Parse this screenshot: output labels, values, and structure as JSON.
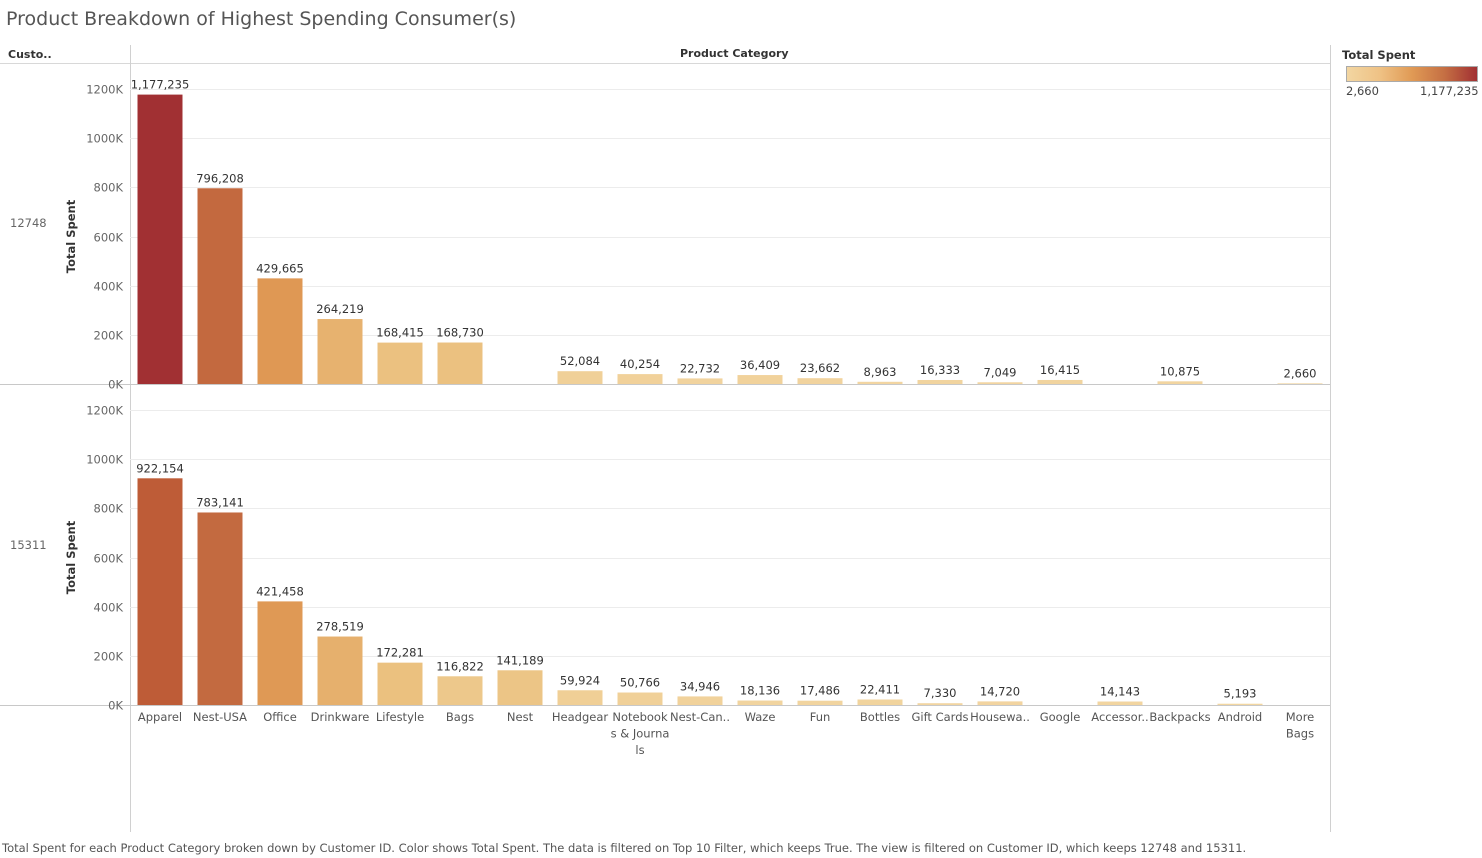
{
  "title": "Product Breakdown of Highest Spending Consumer(s)",
  "header": {
    "row_field": "Custo..",
    "column_field": "Product Category"
  },
  "legend": {
    "title": "Total Spent",
    "min_label": "2,660",
    "max_label": "1,177,235",
    "color_low": "#f2d6a2",
    "color_high": "#a13033"
  },
  "caption": "Total Spent for each Product Category broken down by Customer ID.  Color shows Total Spent. The data is filtered on Top 10 Filter, which keeps True. The view is filtered on Customer ID, which keeps 12748 and 15311.",
  "chart_data": {
    "type": "bar",
    "title": "Product Breakdown of Highest Spending Consumer(s)",
    "xlabel": "Product Category",
    "ylabel": "Total Spent",
    "ylim": [
      0,
      1250000
    ],
    "yticks": [
      0,
      200000,
      400000,
      600000,
      800000,
      1000000,
      1200000
    ],
    "ytick_labels": [
      "0K",
      "200K",
      "400K",
      "600K",
      "800K",
      "1000K",
      "1200K"
    ],
    "grid": true,
    "color_range": [
      2660,
      1177235
    ],
    "categories": [
      "Apparel",
      "Nest-USA",
      "Office",
      "Drinkware",
      "Lifestyle",
      "Bags",
      "Nest",
      "Headgear",
      "Notebooks & Journals",
      "Nest-Can..",
      "Waze",
      "Fun",
      "Bottles",
      "Gift Cards",
      "Housewa..",
      "Google",
      "Accessor..",
      "Backpacks",
      "Android",
      "More Bags"
    ],
    "category_display_lines": [
      [
        "Apparel"
      ],
      [
        "Nest-USA"
      ],
      [
        "Office"
      ],
      [
        "Drinkware"
      ],
      [
        "Lifestyle"
      ],
      [
        "Bags"
      ],
      [
        "Nest"
      ],
      [
        "Headgear"
      ],
      [
        "Notebook",
        "s & Journa",
        "ls"
      ],
      [
        "Nest-Can.."
      ],
      [
        "Waze"
      ],
      [
        "Fun"
      ],
      [
        "Bottles"
      ],
      [
        "Gift Cards"
      ],
      [
        "Housewa.."
      ],
      [
        "Google"
      ],
      [
        "Accessor.."
      ],
      [
        "Backpacks"
      ],
      [
        "Android"
      ],
      [
        "More",
        "Bags"
      ]
    ],
    "series": [
      {
        "name": "12748",
        "values": [
          1177235,
          796208,
          429665,
          264219,
          168415,
          168730,
          null,
          52084,
          40254,
          22732,
          36409,
          23662,
          8963,
          16333,
          7049,
          16415,
          null,
          10875,
          null,
          2660
        ],
        "labels": [
          "1,177,235",
          "796,208",
          "429,665",
          "264,219",
          "168,415",
          "168,730",
          null,
          "52,084",
          "40,254",
          "22,732",
          "36,409",
          "23,662",
          "8,963",
          "16,333",
          "7,049",
          "16,415",
          null,
          "10,875",
          null,
          "2,660"
        ]
      },
      {
        "name": "15311",
        "values": [
          922154,
          783141,
          421458,
          278519,
          172281,
          116822,
          141189,
          59924,
          50766,
          34946,
          18136,
          17486,
          22411,
          7330,
          14720,
          null,
          14143,
          null,
          5193,
          null
        ],
        "labels": [
          "922,154",
          "783,141",
          "421,458",
          "278,519",
          "172,281",
          "116,822",
          "141,189",
          "59,924",
          "50,766",
          "34,946",
          "18,136",
          "17,486",
          "22,411",
          "7,330",
          "14,720",
          null,
          "14,143",
          null,
          "5,193",
          null
        ]
      }
    ]
  }
}
